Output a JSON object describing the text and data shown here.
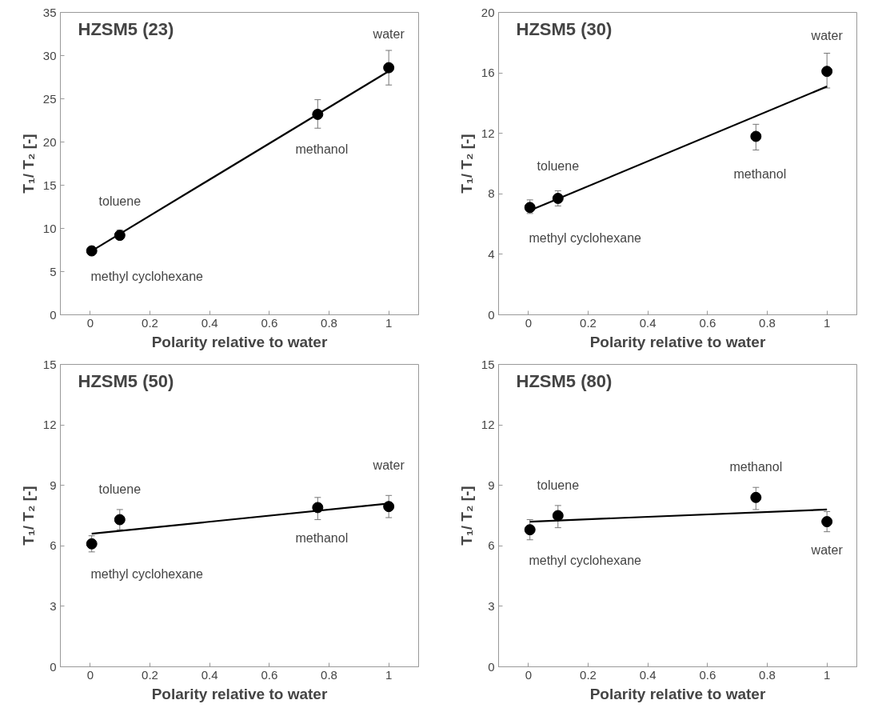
{
  "chart_data": [
    {
      "type": "scatter",
      "title": "HZSM5 (23)",
      "xlabel": "Polarity relative to water",
      "ylabel": "T₁/ T₂ [-]",
      "xlim": [
        -0.1,
        1.1
      ],
      "xticks": [
        0,
        0.2,
        0.4,
        0.6,
        0.8,
        1
      ],
      "ylim": [
        0,
        35
      ],
      "yticks": [
        0,
        5,
        10,
        15,
        20,
        25,
        30,
        35
      ],
      "series": [
        {
          "marker": "circle",
          "color": "#000000",
          "x": [
            0.005,
            0.099,
            0.762,
            1.0
          ],
          "values": [
            7.4,
            9.2,
            23.2,
            28.6
          ],
          "errors": [
            [
              7.1,
              7.7
            ],
            [
              8.7,
              9.8
            ],
            [
              21.6,
              24.9
            ],
            [
              26.6,
              30.6
            ]
          ]
        },
        {
          "type": "line",
          "color": "#000000",
          "x": [
            0.005,
            1.0
          ],
          "values": [
            7.4,
            28.2
          ]
        }
      ],
      "annotations": [
        {
          "text": "methyl cyclohexane",
          "x": 0.005,
          "y": 7.4
        },
        {
          "text": "toluene",
          "x": 0.099,
          "y": 9.2
        },
        {
          "text": "methanol",
          "x": 0.762,
          "y": 23.2
        },
        {
          "text": "water",
          "x": 1.0,
          "y": 28.6
        }
      ]
    },
    {
      "type": "scatter",
      "title": "HZSM5 (30)",
      "xlabel": "Polarity relative to water",
      "ylabel": "T₁/ T₂ [-]",
      "xlim": [
        -0.1,
        1.1
      ],
      "xticks": [
        0,
        0.2,
        0.4,
        0.6,
        0.8,
        1
      ],
      "ylim": [
        0,
        20
      ],
      "yticks": [
        0,
        4,
        8,
        12,
        16,
        20
      ],
      "series": [
        {
          "marker": "circle",
          "color": "#000000",
          "x": [
            0.005,
            0.099,
            0.762,
            1.0
          ],
          "values": [
            7.1,
            7.7,
            11.8,
            16.1
          ],
          "errors": [
            [
              6.7,
              7.6
            ],
            [
              7.2,
              8.2
            ],
            [
              10.9,
              12.6
            ],
            [
              15.0,
              17.3
            ]
          ]
        },
        {
          "type": "line",
          "color": "#000000",
          "x": [
            0.005,
            1.0
          ],
          "values": [
            6.9,
            15.1
          ]
        }
      ],
      "annotations": [
        {
          "text": "methyl cyclohexane",
          "x": 0.005,
          "y": 7.1
        },
        {
          "text": "toluene",
          "x": 0.099,
          "y": 7.7
        },
        {
          "text": "methanol",
          "x": 0.762,
          "y": 11.8
        },
        {
          "text": "water",
          "x": 1.0,
          "y": 16.1
        }
      ]
    },
    {
      "type": "scatter",
      "title": "HZSM5 (50)",
      "xlabel": "Polarity relative to water",
      "ylabel": "T₁/ T₂ [-]",
      "xlim": [
        -0.1,
        1.1
      ],
      "xticks": [
        0,
        0.2,
        0.4,
        0.6,
        0.8,
        1
      ],
      "ylim": [
        0,
        15
      ],
      "yticks": [
        0,
        3,
        6,
        9,
        12,
        15
      ],
      "series": [
        {
          "marker": "circle",
          "color": "#000000",
          "x": [
            0.005,
            0.099,
            0.762,
            1.0
          ],
          "values": [
            6.1,
            7.3,
            7.9,
            7.95
          ],
          "errors": [
            [
              5.7,
              6.5
            ],
            [
              6.8,
              7.8
            ],
            [
              7.3,
              8.4
            ],
            [
              7.4,
              8.5
            ]
          ]
        },
        {
          "type": "line",
          "color": "#000000",
          "x": [
            0.005,
            1.0
          ],
          "values": [
            6.6,
            8.1
          ]
        }
      ],
      "annotations": [
        {
          "text": "methyl cyclohexane",
          "x": 0.005,
          "y": 6.1
        },
        {
          "text": "toluene",
          "x": 0.099,
          "y": 7.3
        },
        {
          "text": "methanol",
          "x": 0.762,
          "y": 7.9
        },
        {
          "text": "water",
          "x": 1.0,
          "y": 7.95
        }
      ]
    },
    {
      "type": "scatter",
      "title": "HZSM5 (80)",
      "xlabel": "Polarity relative to water",
      "ylabel": "T₁/ T₂ [-]",
      "xlim": [
        -0.1,
        1.1
      ],
      "xticks": [
        0,
        0.2,
        0.4,
        0.6,
        0.8,
        1
      ],
      "ylim": [
        0,
        15
      ],
      "yticks": [
        0,
        3,
        6,
        9,
        12,
        15
      ],
      "series": [
        {
          "marker": "circle",
          "color": "#000000",
          "x": [
            0.005,
            0.099,
            0.762,
            1.0
          ],
          "values": [
            6.8,
            7.5,
            8.4,
            7.2
          ],
          "errors": [
            [
              6.3,
              7.3
            ],
            [
              6.9,
              8.0
            ],
            [
              7.8,
              8.9
            ],
            [
              6.7,
              7.7
            ]
          ]
        },
        {
          "type": "line",
          "color": "#000000",
          "x": [
            0.005,
            1.0
          ],
          "values": [
            7.2,
            7.8
          ]
        }
      ],
      "annotations": [
        {
          "text": "methyl cyclohexane",
          "x": 0.005,
          "y": 6.8
        },
        {
          "text": "toluene",
          "x": 0.099,
          "y": 7.5
        },
        {
          "text": "methanol",
          "x": 0.762,
          "y": 8.4
        },
        {
          "text": "water",
          "x": 1.0,
          "y": 7.2
        }
      ]
    }
  ]
}
